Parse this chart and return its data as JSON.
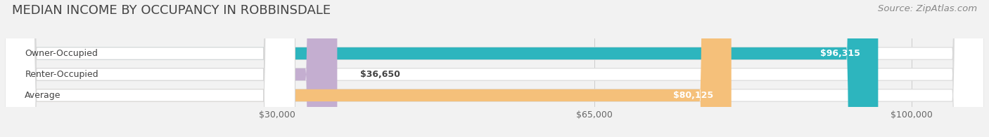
{
  "title": "MEDIAN INCOME BY OCCUPANCY IN ROBBINSDALE",
  "source": "Source: ZipAtlas.com",
  "categories": [
    "Owner-Occupied",
    "Renter-Occupied",
    "Average"
  ],
  "values": [
    96315,
    36650,
    80125
  ],
  "labels": [
    "$96,315",
    "$36,650",
    "$80,125"
  ],
  "bar_colors": [
    "#2db5be",
    "#c4aed0",
    "#f5c07a"
  ],
  "xmax": 108000,
  "xticks": [
    30000,
    65000,
    100000
  ],
  "xticklabels": [
    "$30,000",
    "$65,000",
    "$100,000"
  ],
  "background_color": "#f2f2f2",
  "bar_bg_color": "#ffffff",
  "title_fontsize": 13,
  "source_fontsize": 9.5,
  "label_fontsize": 9,
  "cat_fontsize": 9,
  "tick_fontsize": 9
}
